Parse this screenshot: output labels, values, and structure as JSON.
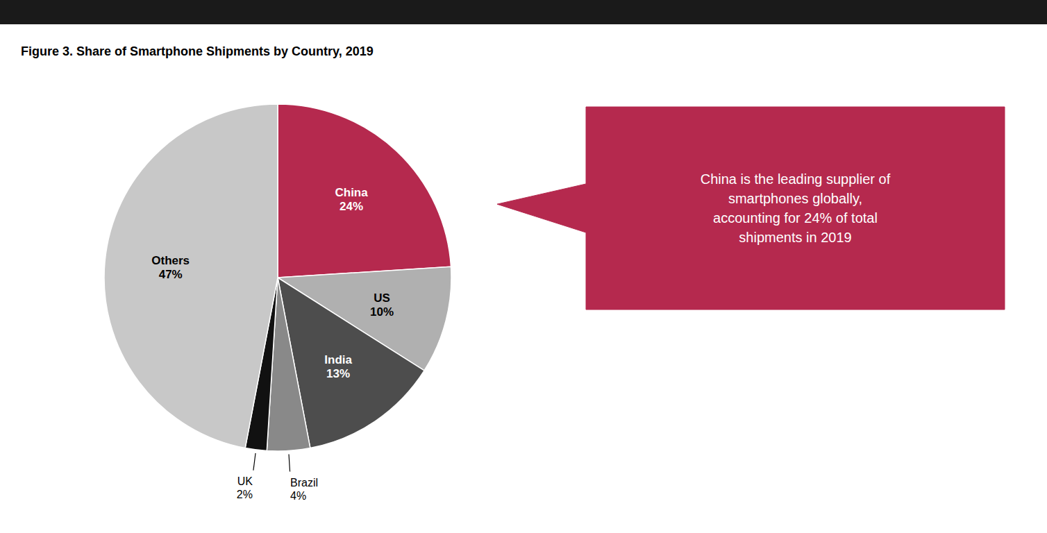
{
  "chart_data": {
    "type": "pie",
    "title": "Figure 3. Share of Smartphone Shipments by Country, 2019",
    "categories": [
      "China",
      "US",
      "India",
      "Brazil",
      "UK",
      "Others"
    ],
    "values": [
      24,
      10,
      13,
      4,
      2,
      47
    ],
    "value_labels": [
      "24%",
      "10%",
      "13%",
      "4%",
      "2%",
      "47%"
    ],
    "colors": [
      "#b5294e",
      "#b0b0b0",
      "#4d4d4d",
      "#898989",
      "#111111",
      "#c8c8c8"
    ],
    "data_labels": true,
    "annotation": "China is the leading supplier of\nsmartphones globally,\naccounting for 24% of total\nshipments in 2019"
  }
}
